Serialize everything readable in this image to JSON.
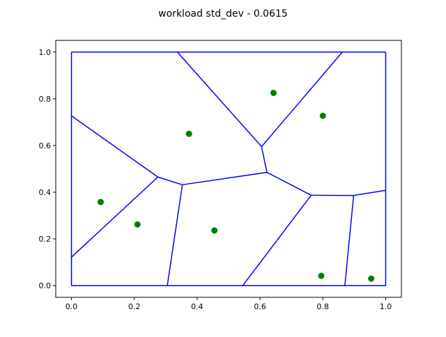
{
  "chart_data": {
    "type": "scatter",
    "title": "workload std_dev - 0.0615",
    "xlabel": "",
    "ylabel": "",
    "xlim": [
      -0.05,
      1.05
    ],
    "ylim": [
      -0.05,
      1.05
    ],
    "xticks": [
      0.0,
      0.2,
      0.4,
      0.6,
      0.8,
      1.0
    ],
    "yticks": [
      0.0,
      0.2,
      0.4,
      0.6,
      0.8,
      1.0
    ],
    "xtick_labels": [
      "0.0",
      "0.2",
      "0.4",
      "0.6",
      "0.8",
      "1.0"
    ],
    "ytick_labels": [
      "0.0",
      "0.2",
      "0.4",
      "0.6",
      "0.8",
      "1.0"
    ],
    "grid": false,
    "colors": {
      "points": "#008000",
      "edges": "#0000ff"
    },
    "points": [
      {
        "x": 0.093,
        "y": 0.358
      },
      {
        "x": 0.21,
        "y": 0.262
      },
      {
        "x": 0.374,
        "y": 0.65
      },
      {
        "x": 0.455,
        "y": 0.236
      },
      {
        "x": 0.643,
        "y": 0.825
      },
      {
        "x": 0.8,
        "y": 0.727
      },
      {
        "x": 0.795,
        "y": 0.042
      },
      {
        "x": 0.954,
        "y": 0.03
      }
    ],
    "edges": [
      [
        [
          0.0,
          0.0
        ],
        [
          1.0,
          0.0
        ]
      ],
      [
        [
          1.0,
          0.0
        ],
        [
          1.0,
          1.0
        ]
      ],
      [
        [
          1.0,
          1.0
        ],
        [
          0.0,
          1.0
        ]
      ],
      [
        [
          0.0,
          1.0
        ],
        [
          0.0,
          0.0
        ]
      ],
      [
        [
          0.0,
          0.727
        ],
        [
          0.275,
          0.465
        ]
      ],
      [
        [
          0.0,
          0.122
        ],
        [
          0.275,
          0.465
        ]
      ],
      [
        [
          0.275,
          0.465
        ],
        [
          0.353,
          0.432
        ]
      ],
      [
        [
          0.353,
          0.432
        ],
        [
          0.305,
          0.0
        ]
      ],
      [
        [
          0.353,
          0.432
        ],
        [
          0.622,
          0.485
        ]
      ],
      [
        [
          0.622,
          0.485
        ],
        [
          0.605,
          0.595
        ]
      ],
      [
        [
          0.605,
          0.595
        ],
        [
          0.337,
          1.0
        ]
      ],
      [
        [
          0.605,
          0.595
        ],
        [
          0.862,
          1.0
        ]
      ],
      [
        [
          0.622,
          0.485
        ],
        [
          0.763,
          0.387
        ]
      ],
      [
        [
          0.763,
          0.387
        ],
        [
          0.545,
          0.0
        ]
      ],
      [
        [
          0.763,
          0.387
        ],
        [
          0.898,
          0.386
        ]
      ],
      [
        [
          0.898,
          0.386
        ],
        [
          0.87,
          0.0
        ]
      ],
      [
        [
          0.898,
          0.386
        ],
        [
          1.0,
          0.408
        ]
      ]
    ]
  }
}
